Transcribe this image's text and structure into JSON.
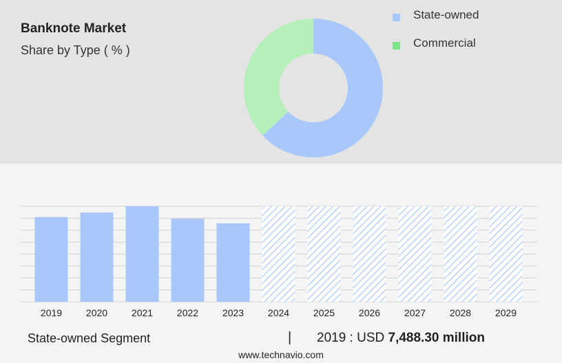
{
  "header": {
    "title": "Banknote Market",
    "subtitle": "Share by Type ( % )"
  },
  "legend": [
    {
      "label": "State-owned",
      "color": "#a8c8fb"
    },
    {
      "label": "Commercial",
      "color": "#7ee389"
    }
  ],
  "footer": {
    "segment_label": "State-owned Segment",
    "separator": "|",
    "year_prefix": "2019 : USD ",
    "value": "7,488.30 million",
    "url": "www.technavio.com"
  },
  "chart_data": [
    {
      "type": "pie",
      "style": "donut",
      "labels": [
        "State-owned",
        "Commercial"
      ],
      "values": [
        63,
        37
      ],
      "colors": [
        "#a8c8fb",
        "#b6efba"
      ],
      "legend": "top-right"
    },
    {
      "type": "bar",
      "categories": [
        "2019",
        "2020",
        "2021",
        "2022",
        "2023",
        "2024",
        "2025",
        "2026",
        "2027",
        "2028",
        "2029"
      ],
      "values": [
        7488.3,
        7900,
        8450,
        7350,
        6950,
        8450,
        8450,
        8450,
        8450,
        8450,
        8450
      ],
      "forecast_from": "2024",
      "ylim": [
        0,
        8450
      ],
      "grid": true,
      "bar_color": "#a8c8fb",
      "forecast_pattern": "diagonal-hatch"
    }
  ]
}
